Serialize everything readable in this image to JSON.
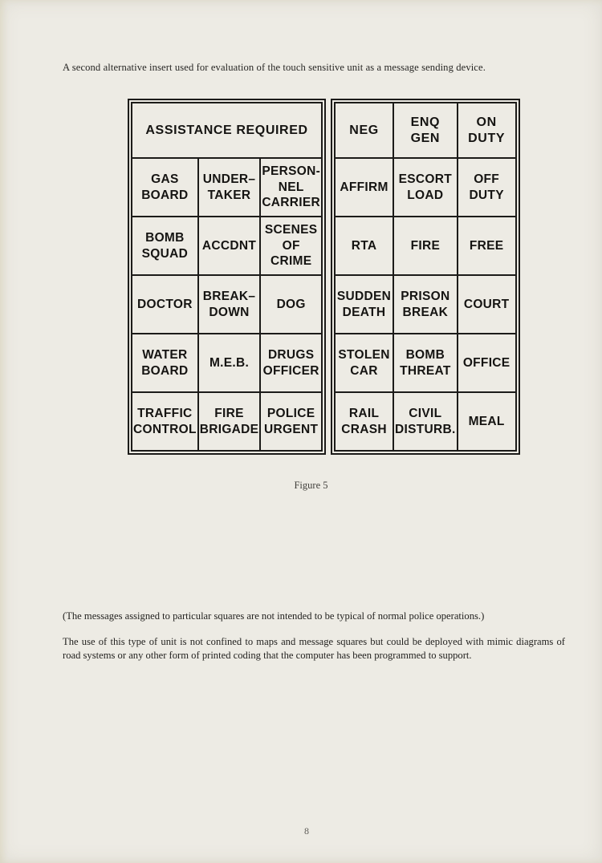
{
  "colors": {
    "paper": "#edebe4",
    "ink": "#1c1b19"
  },
  "page": {
    "intro_text": "A second alternative insert used for evaluation of the touch sensitive unit as a message sending device.",
    "figure_caption": "Figure 5",
    "note_text": "(The messages assigned to particular squares are not intended to be typical of normal police operations.)",
    "body_text": "The use of this type of unit is not confined to maps and message squares but could be deployed with mimic diagrams of road systems or any other form of printed coding that the computer has been programmed to support.",
    "page_number": "8"
  },
  "tables": {
    "left": {
      "header": "ASSISTANCE REQUIRED",
      "rows": [
        [
          "GAS\nBOARD",
          "UNDER–\nTAKER",
          "PERSON-\nNEL\nCARRIER"
        ],
        [
          "BOMB\nSQUAD",
          "ACCDNT",
          "SCENES\nOF\nCRIME"
        ],
        [
          "DOCTOR",
          "BREAK–\nDOWN",
          "DOG"
        ],
        [
          "WATER\nBOARD",
          "M.E.B.",
          "DRUGS\nOFFICER"
        ],
        [
          "TRAFFIC\nCONTROL",
          "FIRE\nBRIGADE",
          "POLICE\nURGENT"
        ]
      ]
    },
    "right": {
      "rows": [
        [
          "NEG",
          "ENQ\nGEN",
          "ON\nDUTY"
        ],
        [
          "AFFIRM",
          "ESCORT\nLOAD",
          "OFF\nDUTY"
        ],
        [
          "RTA",
          "FIRE",
          "FREE"
        ],
        [
          "SUDDEN\nDEATH",
          "PRISON\nBREAK",
          "COURT"
        ],
        [
          "STOLEN\nCAR",
          "BOMB\nTHREAT",
          "OFFICE"
        ],
        [
          "RAIL\nCRASH",
          "CIVIL\nDISTURB.",
          "MEAL"
        ]
      ]
    }
  }
}
